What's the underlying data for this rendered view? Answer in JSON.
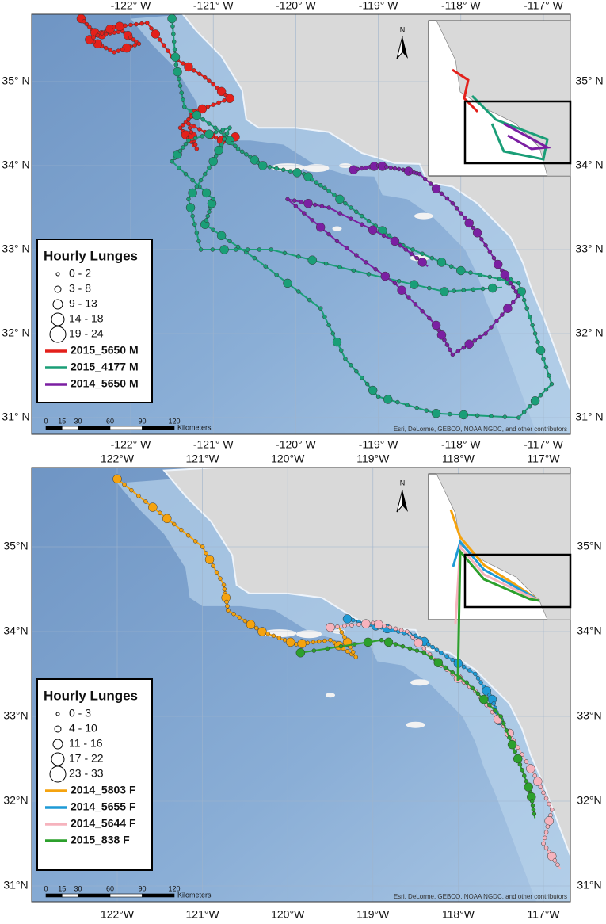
{
  "panels": [
    {
      "lon_labels": [
        "-122° W",
        "-121° W",
        "-120° W",
        "-119° W",
        "-118° W",
        "-117° W"
      ],
      "lat_labels": [
        "35° N",
        "34° N",
        "33° N",
        "32° N",
        "31° N"
      ],
      "north": "N",
      "legend": {
        "title": "Hourly Lunges",
        "sizes": [
          "0 - 2",
          "3 - 8",
          "9 - 13",
          "14 - 18",
          "19 - 24"
        ],
        "tracks": [
          {
            "name": "2015_5650 M",
            "color": "#e3201b"
          },
          {
            "name": "2015_4177 M",
            "color": "#1a9e77"
          },
          {
            "name": "2014_5650 M",
            "color": "#7b1fa2"
          }
        ]
      },
      "scale": {
        "ticks": [
          "0",
          "15",
          "30",
          "60",
          "90",
          "120"
        ],
        "unit": "Kilometers"
      },
      "attribution": "Esri, DeLorme, GEBCO, NOAA NGDC, and other contributors"
    },
    {
      "lon_labels": [
        "122°W",
        "121°W",
        "120°W",
        "119°W",
        "118°W",
        "117°W"
      ],
      "lat_labels": [
        "35°N",
        "34°N",
        "33°N",
        "32°N",
        "31°N"
      ],
      "north": "N",
      "legend": {
        "title": "Hourly Lunges",
        "sizes": [
          "0 - 3",
          "4 - 10",
          "11 - 16",
          "17 - 22",
          "23 - 33"
        ],
        "tracks": [
          {
            "name": "2014_5803 F",
            "color": "#f5a30f"
          },
          {
            "name": "2014_5655 F",
            "color": "#1e9ad6"
          },
          {
            "name": "2014_5644 F",
            "color": "#f6b3bd"
          },
          {
            "name": "2015_838 F",
            "color": "#2ca02c"
          }
        ]
      },
      "scale": {
        "ticks": [
          "0",
          "15",
          "30",
          "60",
          "90",
          "120"
        ],
        "unit": "Kilometers"
      },
      "attribution": "Esri, DeLorme, GEBCO, NOAA NGDC, and other contributors"
    }
  ]
}
